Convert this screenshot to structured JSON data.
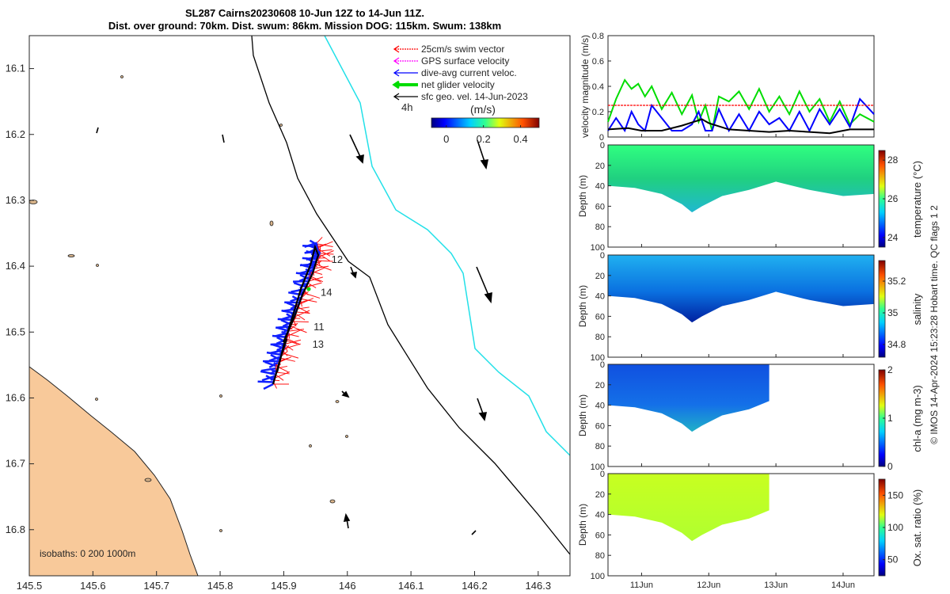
{
  "header": {
    "title_line1": "SL287 Cairns20230608 10-Jun 12Z to 14-Jun 11Z.",
    "title_line2": "Dist. over ground: 70km. Dist. swum: 86km. Mission DOG: 115km. Swum: 138km"
  },
  "map": {
    "legend": [
      {
        "label": "25cm/s swim vector",
        "color": "#ff0000",
        "style": "dotted"
      },
      {
        "label": "GPS surface velocity",
        "color": "#ff00ff",
        "style": "dotted"
      },
      {
        "label": "dive-avg current veloc.",
        "color": "#0000ff",
        "style": "solid"
      },
      {
        "label": "net glider velocity",
        "color": "#00dd00",
        "style": "thick"
      },
      {
        "label": "sfc geo. vel. 14-Jun-2023",
        "color": "#000000",
        "style": "solid"
      }
    ],
    "time_label": "4h",
    "colorbar": {
      "label": "(m/s)",
      "ticks": [
        "0",
        "0.2",
        "0.4"
      ],
      "min": -0.08,
      "max": 0.5
    },
    "isobaths_label": "isobaths: 0   200  1000m",
    "x_ticks": [
      "145.5",
      "145.6",
      "145.7",
      "145.8",
      "145.9",
      "146",
      "146.1",
      "146.2",
      "146.3"
    ],
    "x_range": [
      145.5,
      146.35
    ],
    "y_ticks": [
      "16.1",
      "16.2",
      "16.3",
      "16.4",
      "16.5",
      "16.6",
      "16.7",
      "16.8"
    ],
    "y_range": [
      16.05,
      16.87
    ],
    "day_labels": [
      {
        "text": "12",
        "lon": 145.975,
        "lat": 16.395
      },
      {
        "text": "14",
        "lon": 145.958,
        "lat": 16.445
      },
      {
        "text": "11",
        "lon": 145.947,
        "lat": 16.497
      },
      {
        "text": "13",
        "lon": 145.945,
        "lat": 16.524
      }
    ]
  },
  "velocity_panel": {
    "ylabel": "velocity magnitude (m/s)",
    "y_ticks": [
      "0",
      "0.2",
      "0.4",
      "0.6",
      "0.8"
    ],
    "ylim": [
      0,
      0.8
    ]
  },
  "sections": [
    {
      "label": "temperature (°C)",
      "cb_ticks": [
        "24",
        "26",
        "28"
      ],
      "cb_range": [
        23.5,
        28.5
      ]
    },
    {
      "label": "salinity",
      "cb_ticks": [
        "34.8",
        "35",
        "35.2"
      ],
      "cb_range": [
        34.72,
        35.33
      ]
    },
    {
      "label": "chl-a (mg m-3)",
      "cb_ticks": [
        "0",
        "1",
        "2"
      ],
      "cb_range": [
        0,
        2
      ]
    },
    {
      "label": "Ox. sat. ratio (%)",
      "cb_ticks": [
        "50",
        "100",
        "150"
      ],
      "cb_range": [
        25,
        175
      ]
    }
  ],
  "section_axes": {
    "depth_label": "Depth (m)",
    "depth_ticks": [
      "0",
      "20",
      "40",
      "60",
      "80",
      "100"
    ],
    "time_ticks": [
      "11Jun",
      "12Jun",
      "13Jun",
      "14Jun"
    ],
    "time_range_days": [
      10.5,
      14.46
    ]
  },
  "footer": {
    "credit": "© IMOS 14-Apr-2024 15:23:28 Hobart time. QC flags 1  2"
  },
  "chart_data": [
    {
      "type": "line",
      "title": "velocity magnitude",
      "ylabel": "velocity magnitude (m/s)",
      "ylim": [
        0,
        0.8
      ],
      "x_units": "day of June 2023",
      "series": [
        {
          "name": "net glider velocity",
          "color": "#00dd00",
          "x": [
            10.5,
            10.62,
            10.75,
            10.85,
            10.95,
            11.05,
            11.15,
            11.3,
            11.45,
            11.6,
            11.75,
            11.85,
            11.95,
            12.05,
            12.15,
            12.3,
            12.45,
            12.6,
            12.75,
            12.9,
            13.05,
            13.2,
            13.35,
            13.5,
            13.65,
            13.8,
            13.95,
            14.1,
            14.25,
            14.46
          ],
          "values": [
            0.12,
            0.3,
            0.45,
            0.38,
            0.42,
            0.32,
            0.4,
            0.22,
            0.35,
            0.18,
            0.33,
            0.12,
            0.25,
            0.05,
            0.32,
            0.28,
            0.36,
            0.22,
            0.38,
            0.2,
            0.32,
            0.18,
            0.36,
            0.2,
            0.3,
            0.12,
            0.28,
            0.1,
            0.18,
            0.12
          ]
        },
        {
          "name": "dive-avg current veloc.",
          "color": "#0000ff",
          "x": [
            10.5,
            10.62,
            10.75,
            10.85,
            10.95,
            11.05,
            11.15,
            11.3,
            11.45,
            11.6,
            11.75,
            11.85,
            11.95,
            12.05,
            12.15,
            12.3,
            12.45,
            12.6,
            12.75,
            12.9,
            13.05,
            13.2,
            13.35,
            13.5,
            13.65,
            13.8,
            13.95,
            14.1,
            14.25,
            14.46
          ],
          "values": [
            0.05,
            0.15,
            0.05,
            0.2,
            0.1,
            0.05,
            0.25,
            0.15,
            0.05,
            0.05,
            0.1,
            0.2,
            0.05,
            0.05,
            0.22,
            0.05,
            0.18,
            0.05,
            0.2,
            0.1,
            0.15,
            0.05,
            0.2,
            0.05,
            0.22,
            0.1,
            0.22,
            0.08,
            0.3,
            0.18
          ]
        },
        {
          "name": "sfc geo. vel.",
          "color": "#000000",
          "x": [
            10.5,
            10.8,
            11.0,
            11.3,
            11.6,
            11.9,
            12.0,
            12.3,
            12.6,
            12.9,
            13.2,
            13.5,
            13.8,
            14.1,
            14.46
          ],
          "values": [
            0.06,
            0.07,
            0.05,
            0.05,
            0.09,
            0.14,
            0.11,
            0.06,
            0.05,
            0.04,
            0.05,
            0.04,
            0.03,
            0.06,
            0.06
          ]
        },
        {
          "name": "25cm/s swim vector",
          "color": "#ff0000",
          "x": [
            10.5,
            14.46
          ],
          "values": [
            0.25,
            0.25
          ]
        }
      ]
    },
    {
      "type": "heatmap",
      "title": "temperature (°C)",
      "ylabel": "Depth (m)",
      "ylim": [
        100,
        0
      ],
      "colorbar": [
        23.5,
        28.5
      ],
      "upper_value_range": [
        26.5,
        27.5
      ],
      "lower_value_range": [
        25.5,
        26.3
      ]
    },
    {
      "type": "heatmap",
      "title": "salinity",
      "ylabel": "Depth (m)",
      "ylim": [
        100,
        0
      ],
      "colorbar": [
        34.72,
        35.33
      ],
      "upper_value_range": [
        35.0,
        35.15
      ],
      "lower_value_range": [
        34.8,
        34.95
      ]
    },
    {
      "type": "heatmap",
      "title": "chl-a (mg m-3)",
      "ylabel": "Depth (m)",
      "ylim": [
        100,
        0
      ],
      "colorbar": [
        0,
        2
      ],
      "upper_value_range": [
        0.2,
        0.5
      ],
      "lower_value_range": [
        0.5,
        1.2
      ]
    },
    {
      "type": "heatmap",
      "title": "Ox. sat. ratio (%)",
      "ylabel": "Depth (m)",
      "ylim": [
        100,
        0
      ],
      "colorbar": [
        25,
        175
      ],
      "upper_value_range": [
        105,
        115
      ],
      "lower_value_range": [
        100,
        110
      ]
    }
  ]
}
